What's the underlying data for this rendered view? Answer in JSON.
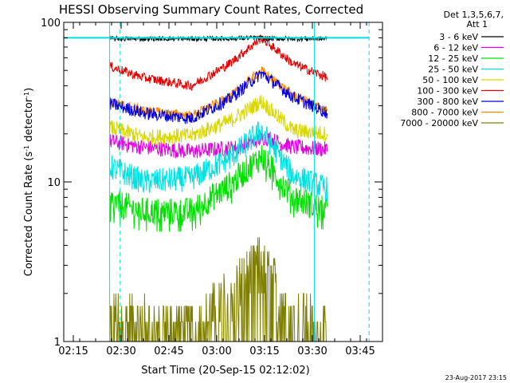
{
  "chart_data": {
    "type": "line",
    "title": "HESSI Observing Summary Count Rates, Corrected",
    "xlabel": "Start Time (20-Sep-15 02:12:02)",
    "ylabel_main": "Corrected Count Rate (s",
    "ylabel_sup1": "-1",
    "ylabel_mid": " detector",
    "ylabel_sup2": "-1",
    "ylabel_end": ")",
    "footer": "23-Aug-2017 23:15",
    "legend_header": [
      "Det 1,3,5,6,7,",
      "Att 1"
    ],
    "y_scale": "log",
    "ylim": [
      1,
      100
    ],
    "xlim_minutes": [
      0,
      100
    ],
    "x_ticks": [
      {
        "label": "02:15",
        "t": 3
      },
      {
        "label": "02:30",
        "t": 18
      },
      {
        "label": "02:45",
        "t": 33
      },
      {
        "label": "03:00",
        "t": 48
      },
      {
        "label": "03:15",
        "t": 63
      },
      {
        "label": "03:30",
        "t": 78
      },
      {
        "label": "03:45",
        "t": 93
      }
    ],
    "y_ticks": [
      {
        "label": "1",
        "v": 1
      },
      {
        "label": "10",
        "v": 10
      },
      {
        "label": "100",
        "v": 100
      }
    ],
    "data_range_minutes": [
      14.4,
      82.8
    ],
    "series": [
      {
        "name": "3 - 6 keV",
        "color": "#000000",
        "x": [
          14.4,
          30,
          50,
          60,
          66,
          75,
          82.8
        ],
        "y": [
          79,
          79,
          79,
          80,
          79,
          79,
          79
        ]
      },
      {
        "name": "6 - 12 keV",
        "color": "#e000e0",
        "x": [
          14.4,
          25,
          40,
          55,
          63,
          72,
          82.8
        ],
        "y": [
          18,
          16.5,
          15.5,
          16.5,
          19,
          16.5,
          16
        ]
      },
      {
        "name": "12 - 25 keV",
        "color": "#00e000",
        "x": [
          14.4,
          25,
          40,
          52,
          62,
          72,
          82.8
        ],
        "y": [
          7.5,
          6.5,
          6.5,
          9.5,
          14.5,
          8,
          6.5
        ]
      },
      {
        "name": "25 - 50 keV",
        "color": "#00e0e0",
        "x": [
          14.4,
          25,
          40,
          52,
          62,
          72,
          82.8
        ],
        "y": [
          12.5,
          10,
          10.5,
          14,
          21,
          11,
          9
        ]
      },
      {
        "name": "50 - 100 keV",
        "color": "#d8d800",
        "x": [
          14.4,
          25,
          40,
          52,
          62,
          72,
          82.8
        ],
        "y": [
          22,
          19,
          19.5,
          24,
          32,
          21,
          20
        ]
      },
      {
        "name": "100 - 300 keV",
        "color": "#e00000",
        "x": [
          14.4,
          25,
          40,
          52,
          62,
          72,
          82.8
        ],
        "y": [
          53,
          45,
          40,
          55,
          80,
          55,
          45
        ]
      },
      {
        "name": "300 - 800 keV",
        "color": "#0000e0",
        "x": [
          14.4,
          25,
          40,
          52,
          62,
          72,
          82.8
        ],
        "y": [
          31,
          27,
          25,
          33,
          48,
          34,
          27
        ]
      },
      {
        "name": "800 - 7000 keV",
        "color": "#ff8800",
        "x": [
          14.4,
          25,
          40,
          52,
          62,
          72,
          82.8
        ],
        "y": [
          32,
          28,
          26,
          34,
          50,
          35,
          28
        ]
      },
      {
        "name": "7000 - 20000 keV",
        "color": "#808000",
        "x": [
          14.4,
          25,
          40,
          52,
          62,
          72,
          82.8
        ],
        "y": [
          1.5,
          1.3,
          1.2,
          2.0,
          3.3,
          1.5,
          1.2
        ]
      }
    ],
    "markers": {
      "solid_lines_minutes": [
        14.4,
        78.6
      ],
      "dashed_lines_minutes": [
        17.7,
        95.8
      ],
      "top_bar_minutes": [
        0,
        95.8
      ],
      "top_bar_value": 80,
      "color": "#00e0e0"
    },
    "grid": false,
    "legend_placement": "right"
  }
}
